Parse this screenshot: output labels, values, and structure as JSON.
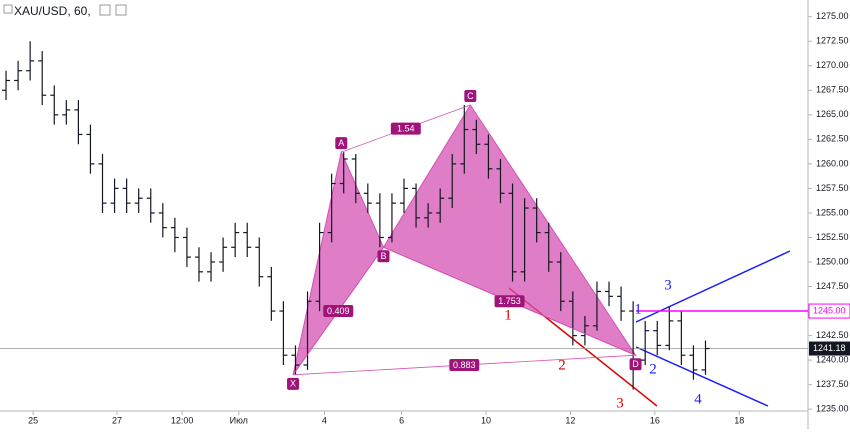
{
  "chart_data": {
    "type": "ohlc",
    "title": "XAU/USD, 60,",
    "x": [
      0,
      1,
      2,
      3,
      4,
      5,
      6,
      7,
      8,
      9,
      10,
      11,
      12,
      13,
      14,
      15,
      16,
      17,
      18,
      19,
      20,
      21,
      22,
      23,
      24,
      25,
      26,
      27,
      28,
      29,
      30,
      31,
      32,
      33,
      34,
      35,
      36,
      37,
      38,
      39,
      40,
      41,
      42,
      43,
      44,
      45,
      46,
      47,
      48,
      49,
      50,
      51,
      52,
      53,
      54,
      55,
      56,
      57,
      58
    ],
    "open": [
      1267.5,
      1268.5,
      1269.5,
      1270.5,
      1267,
      1265,
      1265.5,
      1263,
      1260,
      1256,
      1257.5,
      1256,
      1256.5,
      1255,
      1253.5,
      1252.5,
      1250.5,
      1249,
      1250,
      1251.5,
      1253,
      1251.5,
      1248.5,
      1245,
      1240.5,
      1239.5,
      1246,
      1253,
      1258,
      1260.5,
      1257,
      1256,
      1252.5,
      1256,
      1257.5,
      1254.5,
      1255,
      1256.5,
      1260,
      1263.5,
      1262,
      1259.5,
      1257,
      1249,
      1255.5,
      1253,
      1250,
      1246,
      1242.5,
      1243.5,
      1247,
      1246.5,
      1245,
      1240,
      1243,
      1241.5,
      1244,
      1240.5,
      1239
    ],
    "high": [
      1269.5,
      1270.5,
      1272.5,
      1271.5,
      1268,
      1266.5,
      1266.5,
      1264,
      1261,
      1258.5,
      1258.5,
      1257.5,
      1257.5,
      1256,
      1254.5,
      1253.5,
      1251.5,
      1251,
      1252.5,
      1254,
      1254,
      1252.5,
      1249.5,
      1246,
      1241.5,
      1247,
      1254,
      1259,
      1261.2,
      1261,
      1258,
      1257,
      1257,
      1258.5,
      1258,
      1256,
      1257.5,
      1261,
      1266,
      1264.5,
      1263,
      1260.5,
      1258,
      1256.5,
      1256.5,
      1254,
      1251,
      1247,
      1244.5,
      1248,
      1248,
      1247.5,
      1246,
      1244,
      1244,
      1245.5,
      1245,
      1241.5,
      1242
    ],
    "low": [
      1266.5,
      1267.5,
      1268.5,
      1266,
      1264,
      1264,
      1262,
      1259,
      1255,
      1255,
      1255,
      1255,
      1254,
      1252.5,
      1251,
      1249.5,
      1248,
      1248,
      1249,
      1250.5,
      1250.5,
      1247.5,
      1244,
      1239.5,
      1238.5,
      1239,
      1245,
      1252,
      1257,
      1256,
      1255,
      1251.5,
      1252,
      1255,
      1253.5,
      1253.5,
      1254,
      1255.5,
      1259,
      1261,
      1258.5,
      1256,
      1248,
      1248,
      1252,
      1249,
      1245,
      1241.5,
      1241.5,
      1243,
      1245.5,
      1244,
      1237,
      1239.5,
      1240.5,
      1241,
      1239.5,
      1238,
      1238.5
    ],
    "close": [
      1268.5,
      1269.5,
      1270.5,
      1267,
      1265,
      1265.5,
      1263,
      1260,
      1256,
      1257.5,
      1256,
      1256.5,
      1255,
      1253.5,
      1252.5,
      1250.5,
      1249,
      1250,
      1251.5,
      1253,
      1251.5,
      1248.5,
      1245,
      1240.5,
      1239.5,
      1246,
      1253,
      1258,
      1260.5,
      1257,
      1256,
      1252.5,
      1256,
      1257.5,
      1254.5,
      1255,
      1256.5,
      1260,
      1263.5,
      1262,
      1259.5,
      1257,
      1249,
      1255.5,
      1253,
      1250,
      1246,
      1242.5,
      1243.5,
      1247,
      1246.5,
      1245,
      1240,
      1243,
      1241.5,
      1244,
      1240.5,
      1239,
      1241.18
    ],
    "color": "#131722",
    "xlim": [
      -0.5,
      66.5
    ],
    "xticks": [
      {
        "value": 2.25,
        "label": "25"
      },
      {
        "value": 9.2,
        "label": "27"
      },
      {
        "value": 14.6,
        "label": "12:00"
      },
      {
        "value": 19.3,
        "label": "Июл"
      },
      {
        "value": 26.4,
        "label": "4"
      },
      {
        "value": 32.8,
        "label": "6"
      },
      {
        "value": 39.8,
        "label": "10"
      },
      {
        "value": 46.8,
        "label": "12"
      },
      {
        "value": 53.8,
        "label": "16"
      },
      {
        "value": 60.8,
        "label": "18"
      }
    ],
    "ylim": [
      1234.1,
      1276.5
    ],
    "yticks": [
      {
        "value": 1235,
        "label": "1235.00"
      },
      {
        "value": 1237.5,
        "label": "1237.50"
      },
      {
        "value": 1240,
        "label": "1240.00"
      },
      {
        "value": 1242.5,
        "label": "1242.50"
      },
      {
        "value": 1245,
        "label": "1245.00"
      },
      {
        "value": 1247.5,
        "label": "1247.50"
      },
      {
        "value": 1250,
        "label": "1250.00"
      },
      {
        "value": 1252.5,
        "label": "1252.50"
      },
      {
        "value": 1255,
        "label": "1255.00"
      },
      {
        "value": 1257.5,
        "label": "1257.50"
      },
      {
        "value": 1260,
        "label": "1260.00"
      },
      {
        "value": 1262.5,
        "label": "1262.50"
      },
      {
        "value": 1265,
        "label": "1265.00"
      },
      {
        "value": 1267.5,
        "label": "1267.50"
      },
      {
        "value": 1270,
        "label": "1270.00"
      },
      {
        "value": 1272.5,
        "label": "1272.50"
      },
      {
        "value": 1275,
        "label": "1275.00"
      }
    ],
    "pattern": {
      "color": "#d451b4",
      "points": [
        {
          "label": "X",
          "x": 23.8,
          "y": 1238.5
        },
        {
          "label": "A",
          "x": 27.8,
          "y": 1261.2
        },
        {
          "label": "B",
          "x": 31.3,
          "y": 1251.5
        },
        {
          "label": "C",
          "x": 38.5,
          "y": 1266
        },
        {
          "label": "D",
          "x": 52.2,
          "y": 1240.5
        }
      ],
      "ratios": [
        "1.54",
        "0.409",
        "1.753",
        "0.883"
      ]
    },
    "hline": {
      "value": 1245,
      "label": "1245.00",
      "color": "#ff00ff"
    },
    "waves_red": [
      "1",
      "2",
      "3"
    ],
    "waves_blue": [
      "1",
      "3",
      "2",
      "4"
    ]
  }
}
